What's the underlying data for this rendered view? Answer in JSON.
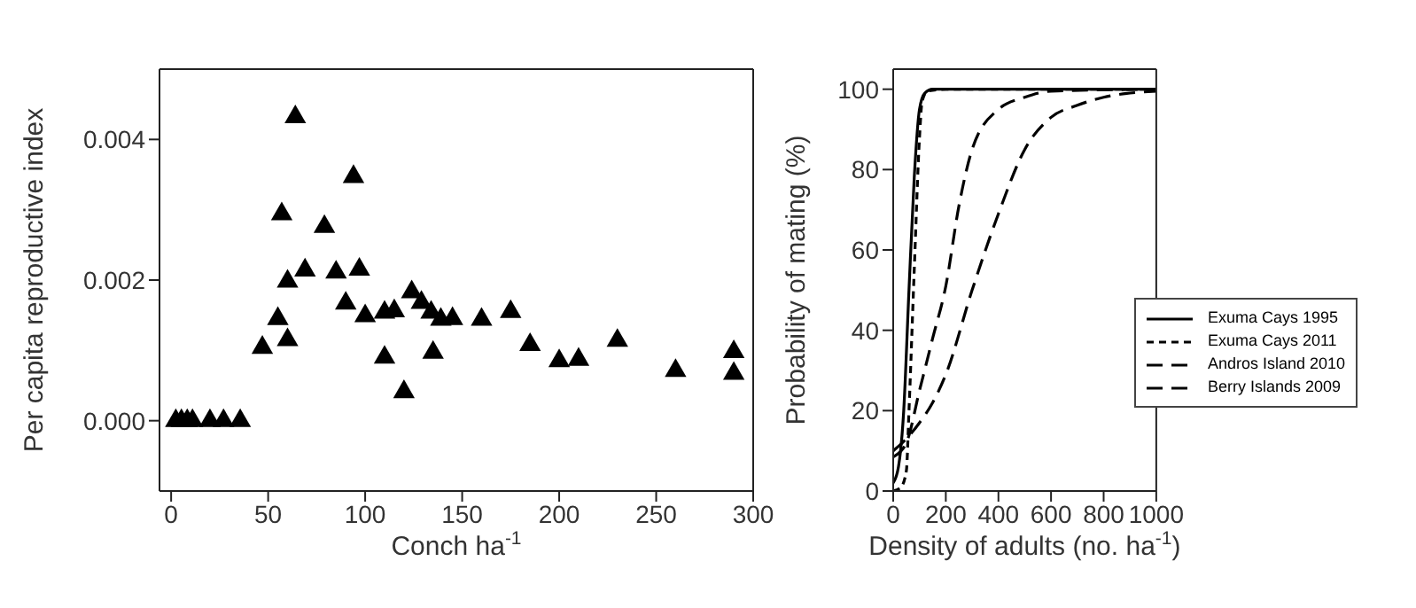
{
  "chart_data": [
    {
      "type": "scatter",
      "xlabel": "Conch ha$^{-1}$",
      "ylabel": "Per capita reproductive index",
      "xlim": [
        -6,
        300
      ],
      "ylim": [
        -0.001,
        0.005
      ],
      "xticks": [
        0,
        50,
        100,
        150,
        200,
        250,
        300
      ],
      "yticks": [
        {
          "value": 0,
          "label": "0.000"
        },
        {
          "value": 0.002,
          "label": "0.002"
        },
        {
          "value": 0.004,
          "label": "0.004"
        }
      ],
      "grid": false,
      "legend": false,
      "marker": "triangle",
      "series": [
        {
          "color": "#000000",
          "x": [
            2.4,
            5.3,
            8.3,
            11,
            20,
            27,
            35.6,
            47,
            55,
            57,
            60,
            60,
            64,
            69,
            79,
            85,
            90,
            94,
            97,
            100,
            110,
            110,
            115,
            120,
            124,
            129,
            134,
            135,
            139,
            145,
            160,
            175,
            185,
            200,
            210,
            230,
            260,
            290,
            290
          ],
          "values": [
            0,
            0,
            0,
            0,
            0,
            0,
            0,
            0.00104,
            0.00145,
            0.00294,
            0.00115,
            0.00198,
            0.00432,
            0.00214,
            0.00276,
            0.00211,
            0.00167,
            0.00347,
            0.00215,
            0.00149,
            0.0009,
            0.00154,
            0.00156,
            0.00041,
            0.00183,
            0.00168,
            0.00154,
            0.00097,
            0.00144,
            0.00145,
            0.00144,
            0.00155,
            0.00108,
            0.00085,
            0.00087,
            0.00114,
            0.00071,
            0.00098,
            0.00067
          ]
        }
      ]
    },
    {
      "type": "line",
      "xlabel": "Density of adults (no. ha$^{-1}$)",
      "ylabel": "Probability of mating (%)",
      "xlim": [
        0,
        1000
      ],
      "ylim": [
        0,
        105
      ],
      "xticks": [
        0,
        200,
        400,
        600,
        800,
        1000
      ],
      "yticks": [
        0,
        20,
        40,
        60,
        80,
        100
      ],
      "grid": false,
      "legend": "bottom right",
      "marker": "none",
      "series": [
        {
          "name": "Exuma Cays 1995",
          "color": "#000000",
          "line_style": "solid",
          "x": [
            0,
            20,
            40,
            60,
            80,
            100,
            120,
            150,
            1000
          ],
          "values": [
            2,
            6,
            20,
            50,
            78,
            95,
            99,
            100,
            100
          ]
        },
        {
          "name": "Exuma Cays 2011",
          "color": "#000000",
          "line_style": "dotted",
          "x": [
            0,
            30,
            50,
            60,
            80,
            100,
            110,
            130,
            200,
            1000
          ],
          "values": [
            0,
            1,
            5,
            20,
            55,
            88,
            97,
            99.5,
            100,
            100
          ]
        },
        {
          "name": "Andros Island 2010",
          "color": "#000000",
          "line_style": "dashed",
          "x": [
            0,
            50,
            100,
            150,
            200,
            250,
            300,
            400,
            500,
            600,
            1000
          ],
          "values": [
            8.5,
            12,
            25,
            38,
            51,
            71,
            85,
            95,
            98,
            99.5,
            100
          ]
        },
        {
          "name": "Berry Islands 2009",
          "color": "#000000",
          "line_style": "dashed",
          "x": [
            0,
            50,
            100,
            150,
            200,
            300,
            400,
            500,
            600,
            700,
            800,
            1000
          ],
          "values": [
            10,
            13,
            17,
            22,
            29,
            50,
            69,
            85,
            93,
            96,
            98,
            99.5
          ]
        }
      ]
    }
  ]
}
